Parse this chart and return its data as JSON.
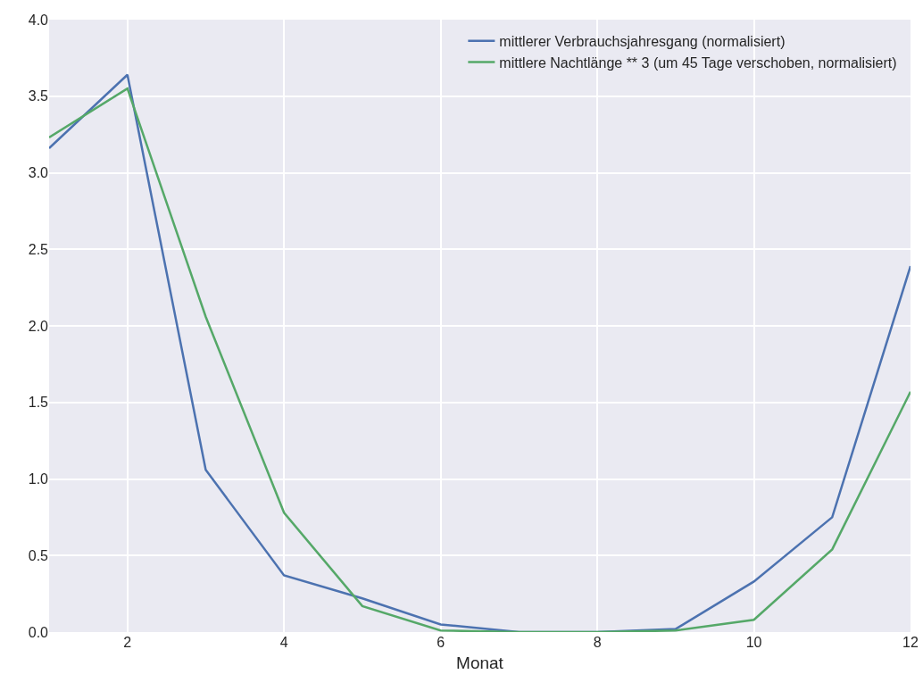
{
  "chart_data": {
    "type": "line",
    "xlabel": "Monat",
    "x": [
      1,
      2,
      3,
      4,
      5,
      6,
      7,
      8,
      9,
      10,
      11,
      12
    ],
    "series": [
      {
        "name": "mittlerer Verbrauchsjahresgang (normalisiert)",
        "color": "#4c72b0",
        "values": [
          3.16,
          3.64,
          1.06,
          0.37,
          0.22,
          0.05,
          0,
          0,
          0.02,
          0.33,
          0.75,
          2.39
        ]
      },
      {
        "name": "mittlere Nachtlänge ** 3 (um 45 Tage verschoben, normalisiert)",
        "color": "#55a868",
        "values": [
          3.23,
          3.55,
          2.06,
          0.78,
          0.17,
          0.01,
          0,
          0,
          0.01,
          0.08,
          0.54,
          1.57
        ]
      }
    ],
    "xlim": [
      1,
      12
    ],
    "xticks": [
      2,
      4,
      6,
      8,
      10,
      12
    ],
    "ylim": [
      0,
      4
    ],
    "yticks": [
      {
        "value": 0,
        "label": "0.0"
      },
      {
        "value": 0.5,
        "label": "0.5"
      },
      {
        "value": 1,
        "label": "1.0"
      },
      {
        "value": 1.5,
        "label": "1.5"
      },
      {
        "value": 2,
        "label": "2.0"
      },
      {
        "value": 2.5,
        "label": "2.5"
      },
      {
        "value": 3,
        "label": "3.0"
      },
      {
        "value": 3.5,
        "label": "3.5"
      },
      {
        "value": 4,
        "label": "4.0"
      }
    ],
    "grid": true,
    "legend": "top right",
    "marker": "none",
    "line_style": "solid"
  }
}
